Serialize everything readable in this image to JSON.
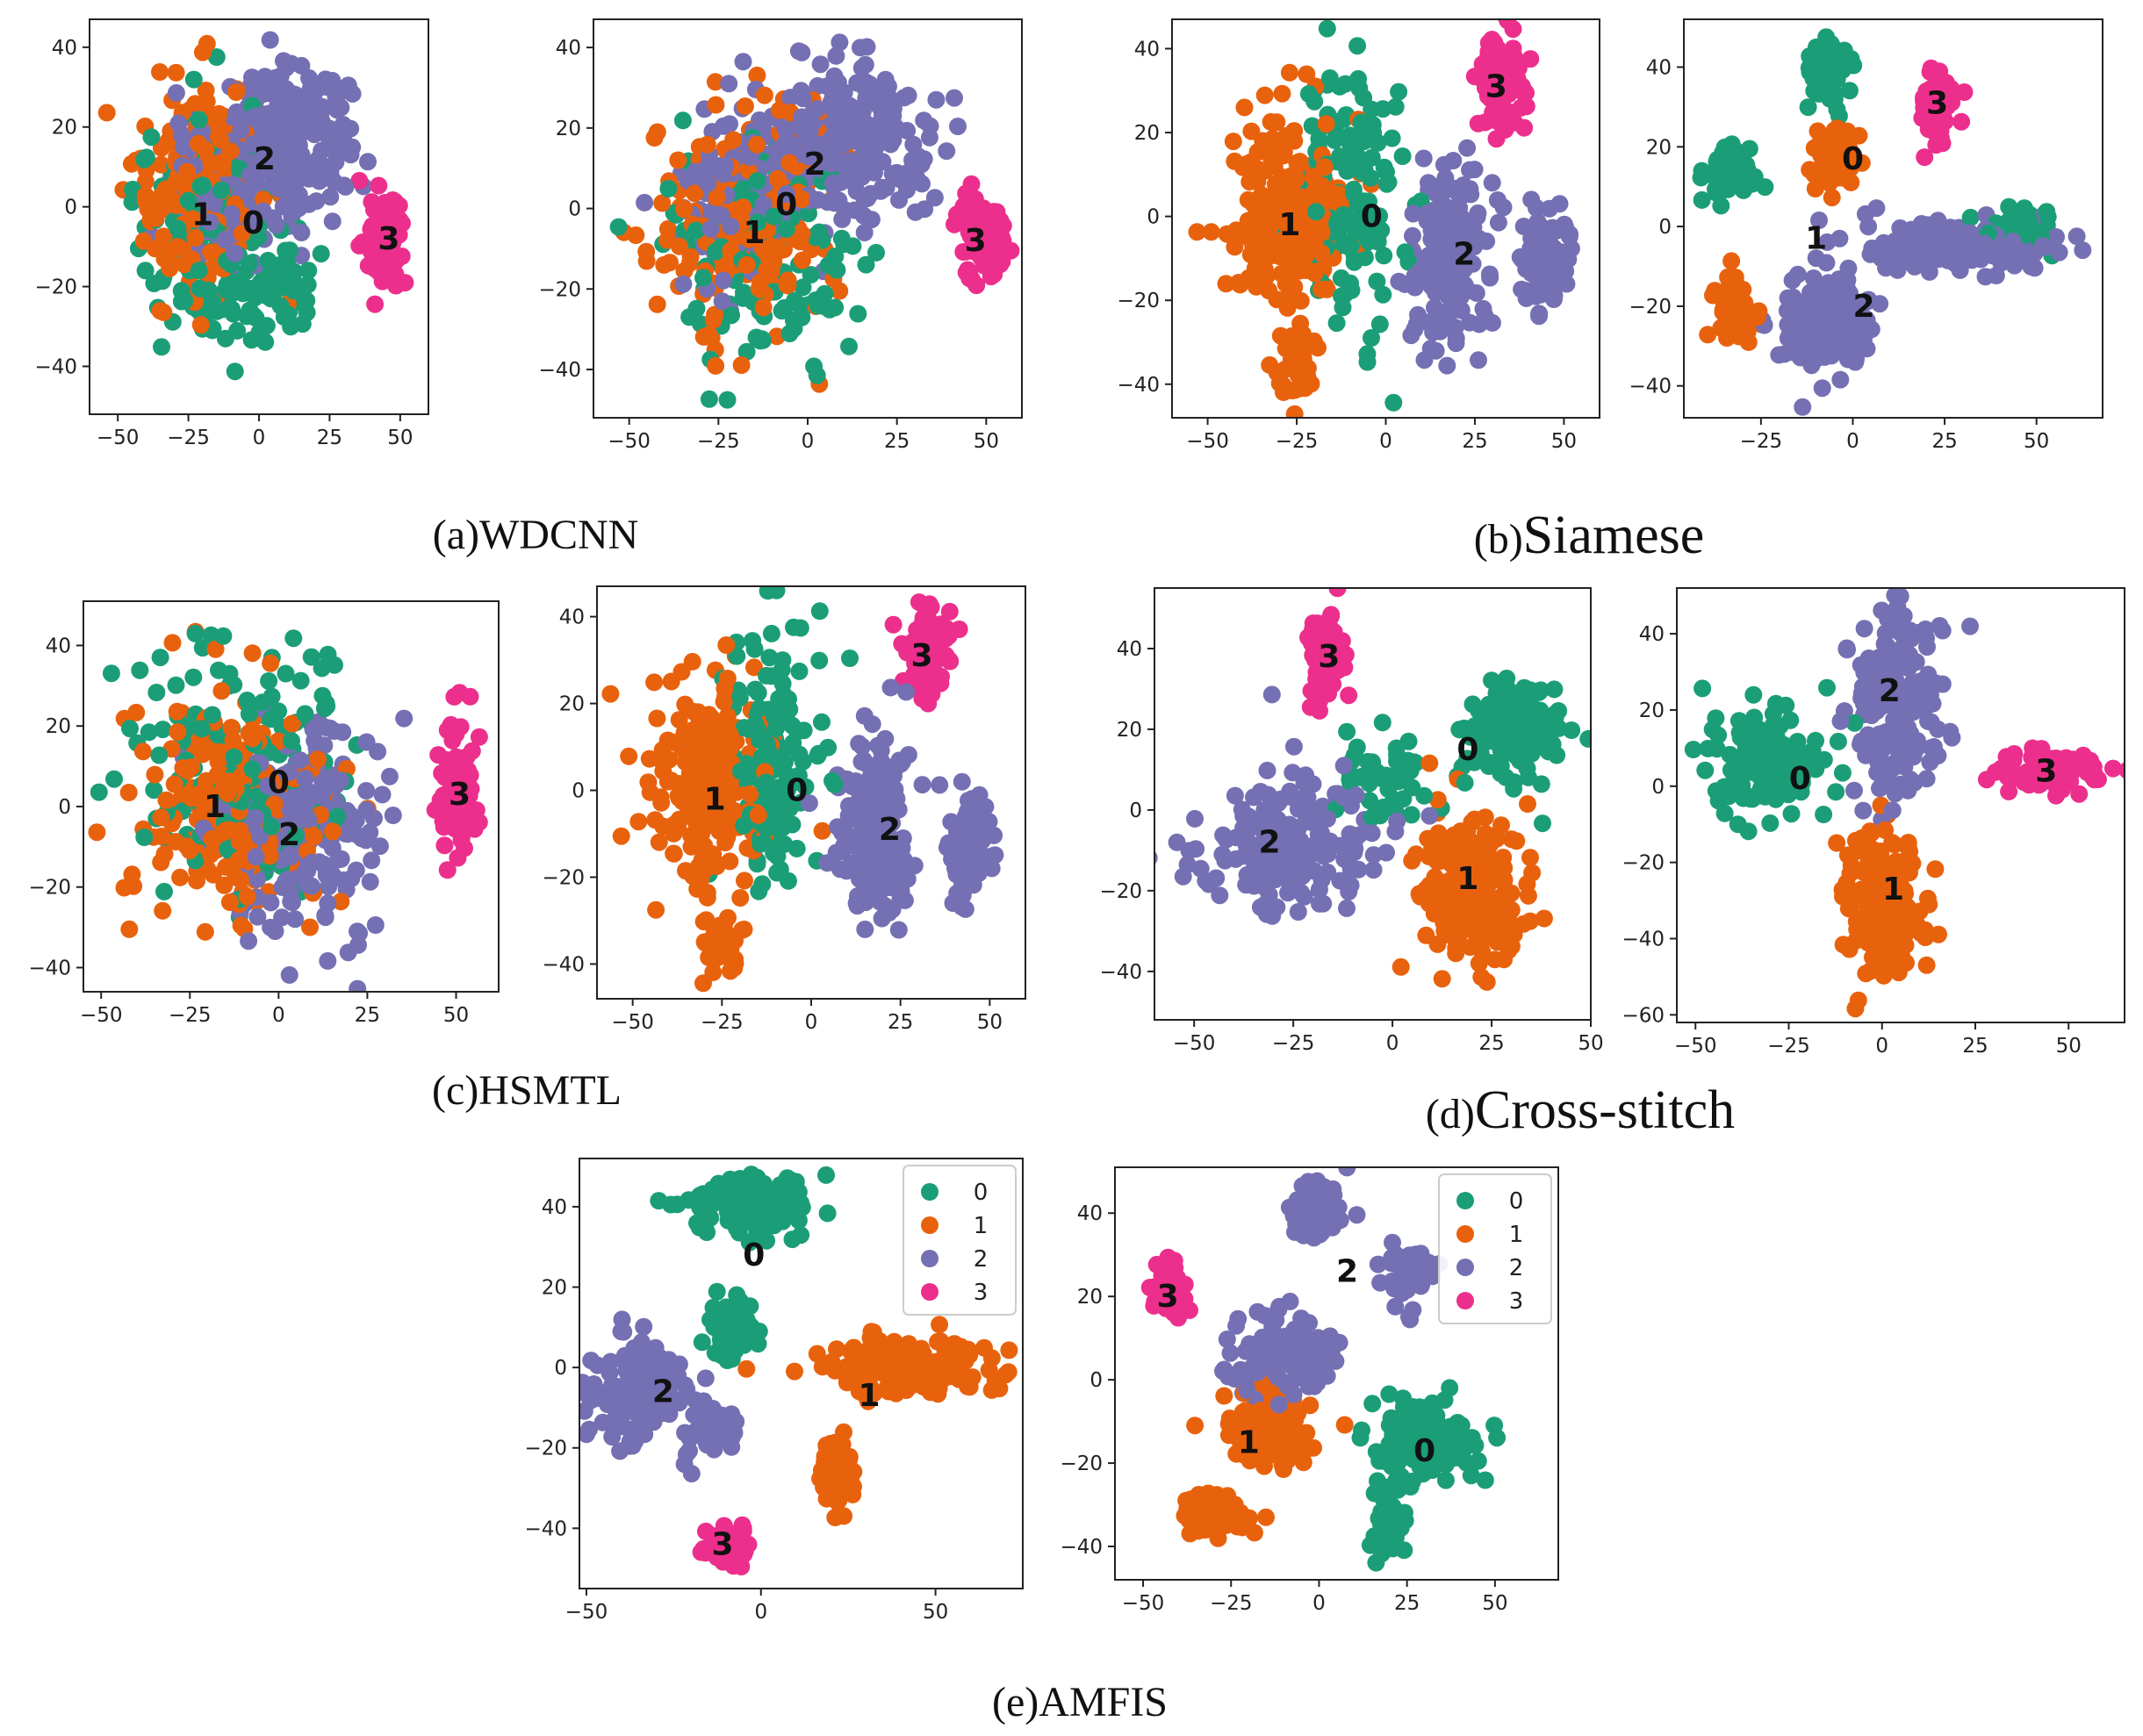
{
  "figure": {
    "captions": [
      {
        "id": "a",
        "prefix": "(a)",
        "name": "WDCNN"
      },
      {
        "id": "b",
        "prefix": "(b)",
        "name": "Siamese"
      },
      {
        "id": "c",
        "prefix": "(c)",
        "name": "HSMTL"
      },
      {
        "id": "d",
        "prefix": "(d)",
        "name": "Cross-stitch"
      },
      {
        "id": "e",
        "prefix": "(e)",
        "name": "AMFIS"
      }
    ]
  },
  "legend": {
    "entries": [
      {
        "label": "0",
        "color": "#1b9e77"
      },
      {
        "label": "1",
        "color": "#e8620d"
      },
      {
        "label": "2",
        "color": "#7570b3"
      },
      {
        "label": "3",
        "color": "#ec2f8c"
      }
    ]
  },
  "chart_data": [
    {
      "id": "a1",
      "type": "scatter",
      "title": "",
      "xlim": [
        -60,
        60
      ],
      "ylim": [
        -52,
        47
      ],
      "xticks": [
        -50,
        -25,
        0,
        25,
        50
      ],
      "xtick_labels": [
        "−50",
        "−25",
        "0",
        "25",
        "50"
      ],
      "yticks": [
        -40,
        -20,
        0,
        20,
        40
      ],
      "ytick_labels": [
        "−40",
        "−20",
        "0",
        "20",
        "40"
      ],
      "clusters": [
        {
          "class": 2,
          "cx": 10,
          "cy": 18,
          "rx": 22,
          "ry": 16,
          "n": 260
        },
        {
          "class": 2,
          "cx": -12,
          "cy": 4,
          "rx": 18,
          "ry": 18,
          "n": 120
        },
        {
          "class": 1,
          "cx": -22,
          "cy": 5,
          "rx": 22,
          "ry": 28,
          "n": 200
        },
        {
          "class": 0,
          "cx": -15,
          "cy": -10,
          "rx": 28,
          "ry": 30,
          "n": 150
        },
        {
          "class": 0,
          "cx": 8,
          "cy": -22,
          "rx": 12,
          "ry": 12,
          "n": 50
        },
        {
          "class": 3,
          "cx": 45,
          "cy": -8,
          "rx": 6,
          "ry": 11,
          "n": 90
        }
      ],
      "labels": [
        {
          "text": "2",
          "x": 2,
          "y": 12
        },
        {
          "text": "1",
          "x": -20,
          "y": -2
        },
        {
          "text": "0",
          "x": -2,
          "y": -4
        },
        {
          "text": "3",
          "x": 46,
          "y": -8
        }
      ]
    },
    {
      "id": "a2",
      "type": "scatter",
      "title": "",
      "xlim": [
        -60,
        60
      ],
      "ylim": [
        -52,
        47
      ],
      "xticks": [
        -50,
        -25,
        0,
        25,
        50
      ],
      "xtick_labels": [
        "−50",
        "−25",
        "0",
        "25",
        "50"
      ],
      "yticks": [
        -40,
        -20,
        0,
        20,
        40
      ],
      "ytick_labels": [
        "−40",
        "−20",
        "0",
        "20",
        "40"
      ],
      "clusters": [
        {
          "class": 2,
          "cx": 12,
          "cy": 18,
          "rx": 22,
          "ry": 18,
          "n": 260
        },
        {
          "class": 2,
          "cx": -18,
          "cy": 4,
          "rx": 20,
          "ry": 22,
          "n": 120
        },
        {
          "class": 1,
          "cx": -18,
          "cy": -3,
          "rx": 24,
          "ry": 28,
          "n": 200
        },
        {
          "class": 0,
          "cx": -12,
          "cy": -10,
          "rx": 28,
          "ry": 30,
          "n": 130
        },
        {
          "class": 3,
          "cx": 48,
          "cy": -7,
          "rx": 7,
          "ry": 10,
          "n": 90
        }
      ],
      "labels": [
        {
          "text": "2",
          "x": 2,
          "y": 11
        },
        {
          "text": "0",
          "x": -6,
          "y": 1
        },
        {
          "text": "1",
          "x": -15,
          "y": -6
        },
        {
          "text": "3",
          "x": 47,
          "y": -8
        }
      ]
    },
    {
      "id": "b1",
      "type": "scatter",
      "title": "",
      "xlim": [
        -60,
        60
      ],
      "ylim": [
        -48,
        47
      ],
      "xticks": [
        -50,
        -25,
        0,
        25,
        50
      ],
      "xtick_labels": [
        "−50",
        "−25",
        "0",
        "25",
        "50"
      ],
      "yticks": [
        -40,
        -20,
        0,
        20,
        40
      ],
      "ytick_labels": [
        "−40",
        "−20",
        "0",
        "20",
        "40"
      ],
      "clusters": [
        {
          "class": 1,
          "cx": -28,
          "cy": 0,
          "rx": 16,
          "ry": 26,
          "n": 220
        },
        {
          "class": 1,
          "cx": -25,
          "cy": -35,
          "rx": 5,
          "ry": 8,
          "n": 40
        },
        {
          "class": 0,
          "cx": -10,
          "cy": 8,
          "rx": 14,
          "ry": 30,
          "n": 140
        },
        {
          "class": 2,
          "cx": 18,
          "cy": -10,
          "rx": 10,
          "ry": 22,
          "n": 200
        },
        {
          "class": 2,
          "cx": 45,
          "cy": -12,
          "rx": 7,
          "ry": 12,
          "n": 80
        },
        {
          "class": 3,
          "cx": 32,
          "cy": 32,
          "rx": 7,
          "ry": 12,
          "n": 80
        }
      ],
      "labels": [
        {
          "text": "1",
          "x": -27,
          "y": -2
        },
        {
          "text": "0",
          "x": -4,
          "y": 0
        },
        {
          "text": "2",
          "x": 22,
          "y": -9
        },
        {
          "text": "3",
          "x": 31,
          "y": 31
        }
      ]
    },
    {
      "id": "b2",
      "type": "scatter",
      "title": "",
      "xlim": [
        -46,
        68
      ],
      "ylim": [
        -48,
        52
      ],
      "xticks": [
        -25,
        0,
        25,
        50
      ],
      "xtick_labels": [
        "−25",
        "0",
        "25",
        "50"
      ],
      "yticks": [
        -40,
        -20,
        0,
        20,
        40
      ],
      "ytick_labels": [
        "−40",
        "−20",
        "0",
        "20",
        "40"
      ],
      "clusters": [
        {
          "class": 0,
          "cx": -7,
          "cy": 38,
          "rx": 6,
          "ry": 8,
          "n": 60
        },
        {
          "class": 0,
          "cx": -34,
          "cy": 14,
          "rx": 6,
          "ry": 8,
          "n": 60
        },
        {
          "class": 1,
          "cx": -6,
          "cy": 17,
          "rx": 8,
          "ry": 8,
          "n": 60
        },
        {
          "class": 3,
          "cx": 23,
          "cy": 31,
          "rx": 5,
          "ry": 10,
          "n": 60
        },
        {
          "class": 2,
          "cx": -7,
          "cy": -25,
          "rx": 12,
          "ry": 14,
          "n": 150
        },
        {
          "class": 1,
          "cx": -32,
          "cy": -22,
          "rx": 6,
          "ry": 8,
          "n": 60
        },
        {
          "class": 2,
          "cx": 30,
          "cy": -5,
          "rx": 28,
          "ry": 7,
          "n": 160
        },
        {
          "class": 0,
          "cx": 45,
          "cy": 0,
          "rx": 12,
          "ry": 5,
          "n": 40
        }
      ],
      "labels": [
        {
          "text": "3",
          "x": 23,
          "y": 31
        },
        {
          "text": "0",
          "x": 0,
          "y": 17
        },
        {
          "text": "1",
          "x": -10,
          "y": -3
        },
        {
          "text": "2",
          "x": 3,
          "y": -20
        }
      ]
    },
    {
      "id": "c1",
      "type": "scatter",
      "title": "",
      "xlim": [
        -55,
        62
      ],
      "ylim": [
        -46,
        51
      ],
      "xticks": [
        -50,
        -25,
        0,
        25,
        50
      ],
      "xtick_labels": [
        "−50",
        "−25",
        "0",
        "25",
        "50"
      ],
      "yticks": [
        -40,
        -20,
        0,
        20,
        40
      ],
      "ytick_labels": [
        "−40",
        "−20",
        "0",
        "20",
        "40"
      ],
      "clusters": [
        {
          "class": 1,
          "cx": -15,
          "cy": 2,
          "rx": 26,
          "ry": 30,
          "n": 220
        },
        {
          "class": 0,
          "cx": -8,
          "cy": 10,
          "rx": 30,
          "ry": 34,
          "n": 160
        },
        {
          "class": 2,
          "cx": 8,
          "cy": -6,
          "rx": 22,
          "ry": 26,
          "n": 220
        },
        {
          "class": 3,
          "cx": 50,
          "cy": 4,
          "rx": 5,
          "ry": 15,
          "n": 90
        }
      ],
      "labels": [
        {
          "text": "1",
          "x": -18,
          "y": 0
        },
        {
          "text": "0",
          "x": 0,
          "y": 6
        },
        {
          "text": "2",
          "x": 3,
          "y": -7
        },
        {
          "text": "3",
          "x": 51,
          "y": 3
        }
      ]
    },
    {
      "id": "c2",
      "type": "scatter",
      "title": "",
      "xlim": [
        -60,
        60
      ],
      "ylim": [
        -48,
        47
      ],
      "xticks": [
        -50,
        -25,
        0,
        25,
        50
      ],
      "xtick_labels": [
        "−50",
        "−25",
        "0",
        "25",
        "50"
      ],
      "yticks": [
        -40,
        -20,
        0,
        20,
        40
      ],
      "ytick_labels": [
        "−40",
        "−20",
        "0",
        "20",
        "40"
      ],
      "clusters": [
        {
          "class": 1,
          "cx": -28,
          "cy": 0,
          "rx": 16,
          "ry": 26,
          "n": 220
        },
        {
          "class": 1,
          "cx": -25,
          "cy": -35,
          "rx": 5,
          "ry": 8,
          "n": 40
        },
        {
          "class": 0,
          "cx": -10,
          "cy": 8,
          "rx": 14,
          "ry": 30,
          "n": 140
        },
        {
          "class": 2,
          "cx": 18,
          "cy": -10,
          "rx": 10,
          "ry": 22,
          "n": 200
        },
        {
          "class": 2,
          "cx": 45,
          "cy": -12,
          "rx": 7,
          "ry": 12,
          "n": 80
        },
        {
          "class": 3,
          "cx": 32,
          "cy": 32,
          "rx": 7,
          "ry": 12,
          "n": 80
        }
      ],
      "labels": [
        {
          "text": "1",
          "x": -27,
          "y": -2
        },
        {
          "text": "0",
          "x": -4,
          "y": 0
        },
        {
          "text": "2",
          "x": 22,
          "y": -9
        },
        {
          "text": "3",
          "x": 31,
          "y": 31
        }
      ]
    },
    {
      "id": "d1",
      "type": "scatter",
      "title": "",
      "xlim": [
        -60,
        50
      ],
      "ylim": [
        -52,
        55
      ],
      "xticks": [
        -50,
        -25,
        0,
        25,
        50
      ],
      "xtick_labels": [
        "−50",
        "−25",
        "0",
        "25",
        "50"
      ],
      "yticks": [
        -40,
        -20,
        0,
        20,
        40
      ],
      "ytick_labels": [
        "−40",
        "−20",
        "0",
        "20",
        "40"
      ],
      "clusters": [
        {
          "class": 3,
          "cx": -17,
          "cy": 38,
          "rx": 5,
          "ry": 12,
          "n": 70
        },
        {
          "class": 0,
          "cx": 30,
          "cy": 20,
          "rx": 14,
          "ry": 12,
          "n": 140
        },
        {
          "class": 2,
          "cx": -25,
          "cy": -8,
          "rx": 22,
          "ry": 18,
          "n": 200
        },
        {
          "class": 1,
          "cx": 20,
          "cy": -20,
          "rx": 14,
          "ry": 20,
          "n": 200
        },
        {
          "class": 0,
          "cx": -2,
          "cy": 8,
          "rx": 14,
          "ry": 10,
          "n": 50
        }
      ],
      "labels": [
        {
          "text": "3",
          "x": -16,
          "y": 38
        },
        {
          "text": "0",
          "x": 19,
          "y": 15
        },
        {
          "text": "2",
          "x": -31,
          "y": -8
        },
        {
          "text": "1",
          "x": 19,
          "y": -17
        }
      ]
    },
    {
      "id": "d2",
      "type": "scatter",
      "title": "",
      "xlim": [
        -55,
        65
      ],
      "ylim": [
        -62,
        52
      ],
      "xticks": [
        -50,
        -25,
        0,
        25,
        50
      ],
      "xtick_labels": [
        "−50",
        "−25",
        "0",
        "25",
        "50"
      ],
      "yticks": [
        -60,
        -40,
        -20,
        0,
        20,
        40
      ],
      "ytick_labels": [
        "−60",
        "−40",
        "−20",
        "0",
        "20",
        "40"
      ],
      "clusters": [
        {
          "class": 0,
          "cx": -30,
          "cy": 5,
          "rx": 16,
          "ry": 14,
          "n": 140
        },
        {
          "class": 2,
          "cx": 5,
          "cy": 20,
          "rx": 14,
          "ry": 24,
          "n": 180
        },
        {
          "class": 3,
          "cx": 45,
          "cy": 4,
          "rx": 14,
          "ry": 5,
          "n": 80
        },
        {
          "class": 1,
          "cx": 0,
          "cy": -30,
          "rx": 12,
          "ry": 20,
          "n": 180
        }
      ],
      "labels": [
        {
          "text": "2",
          "x": 2,
          "y": 25
        },
        {
          "text": "0",
          "x": -22,
          "y": 2
        },
        {
          "text": "3",
          "x": 44,
          "y": 4
        },
        {
          "text": "1",
          "x": 3,
          "y": -27
        }
      ]
    },
    {
      "id": "e1",
      "type": "scatter",
      "title": "",
      "xlim": [
        -52,
        75
      ],
      "ylim": [
        -55,
        52
      ],
      "xticks": [
        -50,
        0,
        50
      ],
      "xtick_labels": [
        "−50",
        "0",
        "50"
      ],
      "yticks": [
        -40,
        -20,
        0,
        20,
        40
      ],
      "ytick_labels": [
        "−40",
        "−20",
        "0",
        "20",
        "40"
      ],
      "legend": true,
      "clusters": [
        {
          "class": 0,
          "cx": -3,
          "cy": 40,
          "rx": 16,
          "ry": 7,
          "n": 120
        },
        {
          "class": 0,
          "cx": -8,
          "cy": 10,
          "rx": 7,
          "ry": 8,
          "n": 60
        },
        {
          "class": 2,
          "cx": -35,
          "cy": -5,
          "rx": 14,
          "ry": 14,
          "n": 140
        },
        {
          "class": 2,
          "cx": -15,
          "cy": -15,
          "rx": 8,
          "ry": 6,
          "n": 50
        },
        {
          "class": 1,
          "cx": 40,
          "cy": 0,
          "rx": 25,
          "ry": 8,
          "n": 140
        },
        {
          "class": 1,
          "cx": 22,
          "cy": -25,
          "rx": 5,
          "ry": 10,
          "n": 60
        },
        {
          "class": 3,
          "cx": -10,
          "cy": -45,
          "rx": 7,
          "ry": 5,
          "n": 60
        }
      ],
      "labels": [
        {
          "text": "0",
          "x": -2,
          "y": 28
        },
        {
          "text": "2",
          "x": -28,
          "y": -6
        },
        {
          "text": "1",
          "x": 31,
          "y": -7
        },
        {
          "text": "3",
          "x": -11,
          "y": -44
        }
      ]
    },
    {
      "id": "e2",
      "type": "scatter",
      "title": "",
      "xlim": [
        -58,
        68
      ],
      "ylim": [
        -48,
        51
      ],
      "xticks": [
        -50,
        -25,
        0,
        25,
        50
      ],
      "xtick_labels": [
        "−50",
        "−25",
        "0",
        "25",
        "50"
      ],
      "yticks": [
        -40,
        -20,
        0,
        20,
        40
      ],
      "ytick_labels": [
        "−40",
        "−20",
        "0",
        "20",
        "40"
      ],
      "legend": true,
      "clusters": [
        {
          "class": 2,
          "cx": 0,
          "cy": 40,
          "rx": 8,
          "ry": 7,
          "n": 60
        },
        {
          "class": 2,
          "cx": 25,
          "cy": 25,
          "rx": 7,
          "ry": 8,
          "n": 50
        },
        {
          "class": 3,
          "cx": -43,
          "cy": 22,
          "rx": 6,
          "ry": 6,
          "n": 60
        },
        {
          "class": 2,
          "cx": -10,
          "cy": 5,
          "rx": 14,
          "ry": 10,
          "n": 140
        },
        {
          "class": 1,
          "cx": -15,
          "cy": -12,
          "rx": 12,
          "ry": 10,
          "n": 120
        },
        {
          "class": 1,
          "cx": -30,
          "cy": -32,
          "rx": 10,
          "ry": 6,
          "n": 70
        },
        {
          "class": 0,
          "cx": 30,
          "cy": -15,
          "rx": 16,
          "ry": 10,
          "n": 150
        },
        {
          "class": 0,
          "cx": 20,
          "cy": -35,
          "rx": 5,
          "ry": 8,
          "n": 50
        }
      ],
      "labels": [
        {
          "text": "2",
          "x": 8,
          "y": 26
        },
        {
          "text": "3",
          "x": -43,
          "y": 20
        },
        {
          "text": "1",
          "x": -20,
          "y": -15
        },
        {
          "text": "0",
          "x": 30,
          "y": -17
        }
      ]
    }
  ]
}
